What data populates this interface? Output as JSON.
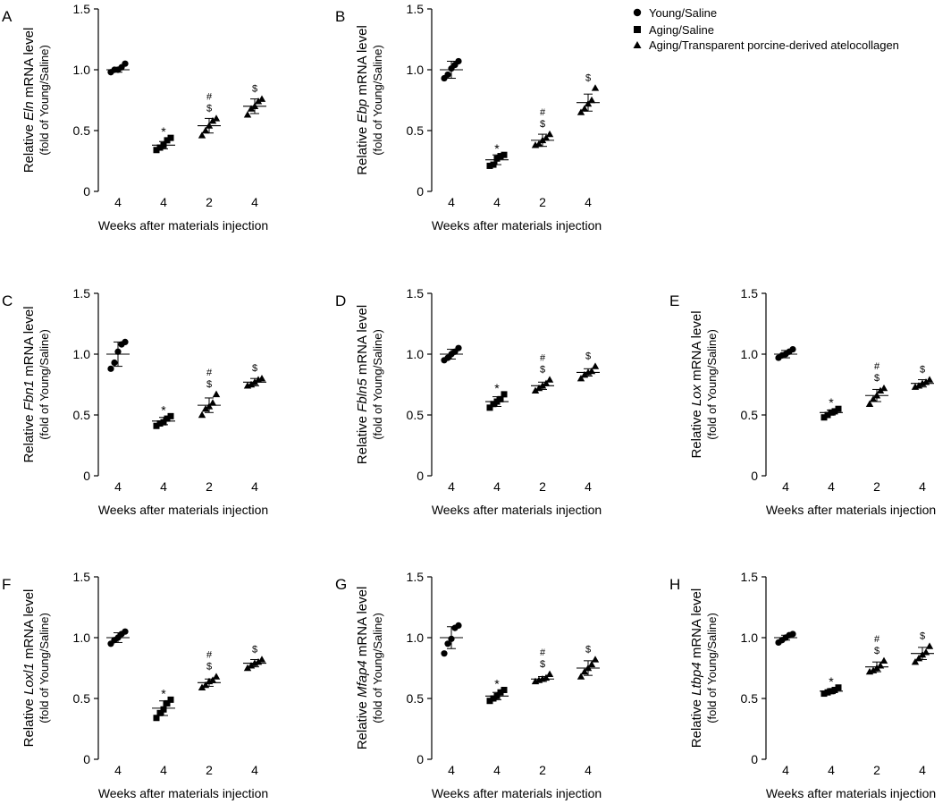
{
  "legend": {
    "entries": [
      {
        "marker": "circle",
        "label": "Young/Saline"
      },
      {
        "marker": "square",
        "label": "Aging/Saline"
      },
      {
        "marker": "triangle",
        "label": "Aging/Transparent porcine-derived atelocollagen"
      }
    ]
  },
  "chart_data": [
    {
      "type": "scatter",
      "panel": "A",
      "gene": "Eln",
      "ylabel_pre": "Relative ",
      "ylabel_post": " mRNA level",
      "ylabel2": "(fold of Young/Saline)",
      "xlabel": "Weeks after materials injection",
      "categories": [
        "4",
        "4",
        "2",
        "4"
      ],
      "yticks": [
        "0",
        "0.5",
        "1.0",
        "1.5"
      ],
      "ylim": [
        0,
        1.5
      ],
      "groups": [
        {
          "series": "Young/Saline",
          "points": [
            0.98,
            1.0,
            1.0,
            1.02,
            1.05
          ],
          "mean": 1.0,
          "sd": 0.02,
          "marks": []
        },
        {
          "series": "Aging/Saline",
          "points": [
            0.34,
            0.36,
            0.38,
            0.42,
            0.44
          ],
          "mean": 0.38,
          "sd": 0.03,
          "marks": [
            "*"
          ]
        },
        {
          "series": "Aging/Transparent porcine-derived atelocollagen",
          "points": [
            0.46,
            0.5,
            0.54,
            0.58,
            0.6
          ],
          "mean": 0.54,
          "sd": 0.06,
          "marks": [
            "$",
            "#"
          ]
        },
        {
          "series": "Aging/Transparent porcine-derived atelocollagen",
          "points": [
            0.63,
            0.68,
            0.7,
            0.74,
            0.76
          ],
          "mean": 0.7,
          "sd": 0.06,
          "marks": [
            "$"
          ]
        }
      ]
    },
    {
      "type": "scatter",
      "panel": "B",
      "gene": "Ebp",
      "ylabel_pre": "Relative ",
      "ylabel_post": " mRNA level",
      "ylabel2": "(fold of Young/Saline)",
      "xlabel": "Weeks after materials injection",
      "categories": [
        "4",
        "4",
        "2",
        "4"
      ],
      "yticks": [
        "0",
        "0.5",
        "1.0",
        "1.5"
      ],
      "ylim": [
        0,
        1.5
      ],
      "groups": [
        {
          "series": "Young/Saline",
          "points": [
            0.93,
            0.96,
            1.01,
            1.04,
            1.07
          ],
          "mean": 1.0,
          "sd": 0.07,
          "marks": []
        },
        {
          "series": "Aging/Saline",
          "points": [
            0.21,
            0.22,
            0.27,
            0.29,
            0.3
          ],
          "mean": 0.26,
          "sd": 0.04,
          "marks": [
            "*"
          ]
        },
        {
          "series": "Aging/Transparent porcine-derived atelocollagen",
          "points": [
            0.38,
            0.39,
            0.42,
            0.44,
            0.47
          ],
          "mean": 0.42,
          "sd": 0.05,
          "marks": [
            "$",
            "#"
          ]
        },
        {
          "series": "Aging/Transparent porcine-derived atelocollagen",
          "points": [
            0.65,
            0.68,
            0.72,
            0.75,
            0.85
          ],
          "mean": 0.73,
          "sd": 0.07,
          "marks": [
            "$"
          ]
        }
      ]
    },
    {
      "type": "scatter",
      "panel": "C",
      "gene": "Fbn1",
      "ylabel_pre": "Relative ",
      "ylabel_post": " mRNA level",
      "ylabel2": "(fold of Young/Saline)",
      "xlabel": "Weeks after materials injection",
      "categories": [
        "4",
        "4",
        "2",
        "4"
      ],
      "yticks": [
        "0",
        "0.5",
        "1.0",
        "1.5"
      ],
      "ylim": [
        0,
        1.5
      ],
      "groups": [
        {
          "series": "Young/Saline",
          "points": [
            0.88,
            0.93,
            1.02,
            1.08,
            1.1
          ],
          "mean": 1.0,
          "sd": 0.1,
          "marks": []
        },
        {
          "series": "Aging/Saline",
          "points": [
            0.41,
            0.43,
            0.44,
            0.47,
            0.49
          ],
          "mean": 0.45,
          "sd": 0.03,
          "marks": [
            "*"
          ]
        },
        {
          "series": "Aging/Transparent porcine-derived atelocollagen",
          "points": [
            0.5,
            0.55,
            0.57,
            0.6,
            0.67
          ],
          "mean": 0.58,
          "sd": 0.06,
          "marks": [
            "$",
            "#"
          ]
        },
        {
          "series": "Aging/Transparent porcine-derived atelocollagen",
          "points": [
            0.74,
            0.75,
            0.77,
            0.79,
            0.8
          ],
          "mean": 0.77,
          "sd": 0.03,
          "marks": [
            "$"
          ]
        }
      ]
    },
    {
      "type": "scatter",
      "panel": "D",
      "gene": "Fbln5",
      "ylabel_pre": "Relative ",
      "ylabel_post": " mRNA level",
      "ylabel2": "(fold of Young/Saline)",
      "xlabel": "Weeks after materials injection",
      "categories": [
        "4",
        "4",
        "2",
        "4"
      ],
      "yticks": [
        "0",
        "0.5",
        "1.0",
        "1.5"
      ],
      "ylim": [
        0,
        1.5
      ],
      "groups": [
        {
          "series": "Young/Saline",
          "points": [
            0.95,
            0.97,
            1.0,
            1.02,
            1.05
          ],
          "mean": 1.0,
          "sd": 0.04,
          "marks": []
        },
        {
          "series": "Aging/Saline",
          "points": [
            0.56,
            0.59,
            0.61,
            0.63,
            0.67
          ],
          "mean": 0.61,
          "sd": 0.04,
          "marks": [
            "*"
          ]
        },
        {
          "series": "Aging/Transparent porcine-derived atelocollagen",
          "points": [
            0.7,
            0.72,
            0.74,
            0.76,
            0.79
          ],
          "mean": 0.74,
          "sd": 0.03,
          "marks": [
            "$",
            "#"
          ]
        },
        {
          "series": "Aging/Transparent porcine-derived atelocollagen",
          "points": [
            0.8,
            0.83,
            0.85,
            0.86,
            0.9
          ],
          "mean": 0.85,
          "sd": 0.03,
          "marks": [
            "$"
          ]
        }
      ]
    },
    {
      "type": "scatter",
      "panel": "E",
      "gene": "Lox",
      "ylabel_pre": "Relative ",
      "ylabel_post": " mRNA level",
      "ylabel2": "(fold of Young/Saline)",
      "xlabel": "Weeks after materials injection",
      "categories": [
        "4",
        "4",
        "2",
        "4"
      ],
      "yticks": [
        "0",
        "0.5",
        "1.0",
        "1.5"
      ],
      "ylim": [
        0,
        1.5
      ],
      "groups": [
        {
          "series": "Young/Saline",
          "points": [
            0.97,
            0.99,
            1.0,
            1.02,
            1.04
          ],
          "mean": 1.0,
          "sd": 0.03,
          "marks": []
        },
        {
          "series": "Aging/Saline",
          "points": [
            0.48,
            0.5,
            0.52,
            0.53,
            0.55
          ],
          "mean": 0.52,
          "sd": 0.02,
          "marks": [
            "*"
          ]
        },
        {
          "series": "Aging/Transparent porcine-derived atelocollagen",
          "points": [
            0.59,
            0.63,
            0.66,
            0.7,
            0.72
          ],
          "mean": 0.66,
          "sd": 0.05,
          "marks": [
            "$",
            "#"
          ]
        },
        {
          "series": "Aging/Transparent porcine-derived atelocollagen",
          "points": [
            0.73,
            0.74,
            0.76,
            0.77,
            0.79
          ],
          "mean": 0.76,
          "sd": 0.03,
          "marks": [
            "$"
          ]
        }
      ]
    },
    {
      "type": "scatter",
      "panel": "F",
      "gene": "Loxl1",
      "ylabel_pre": "Relative ",
      "ylabel_post": " mRNA level",
      "ylabel2": "(fold of Young/Saline)",
      "xlabel": "Weeks after materials injection",
      "categories": [
        "4",
        "4",
        "2",
        "4"
      ],
      "yticks": [
        "0",
        "0.5",
        "1.0",
        "1.5"
      ],
      "ylim": [
        0,
        1.5
      ],
      "groups": [
        {
          "series": "Young/Saline",
          "points": [
            0.95,
            0.98,
            1.0,
            1.03,
            1.05
          ],
          "mean": 1.0,
          "sd": 0.04,
          "marks": []
        },
        {
          "series": "Aging/Saline",
          "points": [
            0.34,
            0.38,
            0.41,
            0.46,
            0.49
          ],
          "mean": 0.42,
          "sd": 0.06,
          "marks": [
            "*"
          ]
        },
        {
          "series": "Aging/Transparent porcine-derived atelocollagen",
          "points": [
            0.59,
            0.61,
            0.64,
            0.65,
            0.68
          ],
          "mean": 0.63,
          "sd": 0.03,
          "marks": [
            "$",
            "#"
          ]
        },
        {
          "series": "Aging/Transparent porcine-derived atelocollagen",
          "points": [
            0.75,
            0.77,
            0.79,
            0.8,
            0.82
          ],
          "mean": 0.79,
          "sd": 0.03,
          "marks": [
            "$"
          ]
        }
      ]
    },
    {
      "type": "scatter",
      "panel": "G",
      "gene": "Mfap4",
      "ylabel_pre": "Relative ",
      "ylabel_post": " mRNA level",
      "ylabel2": "(fold of Young/Saline)",
      "xlabel": "Weeks after materials injection",
      "categories": [
        "4",
        "4",
        "2",
        "4"
      ],
      "yticks": [
        "0",
        "0.5",
        "1.0",
        "1.5"
      ],
      "ylim": [
        0,
        1.5
      ],
      "groups": [
        {
          "series": "Young/Saline",
          "points": [
            0.87,
            0.95,
            0.99,
            1.08,
            1.1
          ],
          "mean": 1.0,
          "sd": 0.09,
          "marks": []
        },
        {
          "series": "Aging/Saline",
          "points": [
            0.48,
            0.5,
            0.52,
            0.55,
            0.57
          ],
          "mean": 0.52,
          "sd": 0.03,
          "marks": [
            "*"
          ]
        },
        {
          "series": "Aging/Transparent porcine-derived atelocollagen",
          "points": [
            0.64,
            0.65,
            0.66,
            0.67,
            0.7
          ],
          "mean": 0.66,
          "sd": 0.02,
          "marks": [
            "$",
            "#"
          ]
        },
        {
          "series": "Aging/Transparent porcine-derived atelocollagen",
          "points": [
            0.68,
            0.72,
            0.75,
            0.78,
            0.82
          ],
          "mean": 0.75,
          "sd": 0.06,
          "marks": [
            "$"
          ]
        }
      ]
    },
    {
      "type": "scatter",
      "panel": "H",
      "gene": "Ltbp4",
      "ylabel_pre": "Relative ",
      "ylabel_post": " mRNA level",
      "ylabel2": "(fold of Young/Saline)",
      "xlabel": "Weeks after materials injection",
      "categories": [
        "4",
        "4",
        "2",
        "4"
      ],
      "yticks": [
        "0",
        "0.5",
        "1.0",
        "1.5"
      ],
      "ylim": [
        0,
        1.5
      ],
      "groups": [
        {
          "series": "Young/Saline",
          "points": [
            0.96,
            0.98,
            1.0,
            1.02,
            1.03
          ],
          "mean": 1.0,
          "sd": 0.02,
          "marks": []
        },
        {
          "series": "Aging/Saline",
          "points": [
            0.54,
            0.55,
            0.56,
            0.57,
            0.59
          ],
          "mean": 0.56,
          "sd": 0.02,
          "marks": [
            "*"
          ]
        },
        {
          "series": "Aging/Transparent porcine-derived atelocollagen",
          "points": [
            0.72,
            0.73,
            0.75,
            0.77,
            0.81
          ],
          "mean": 0.76,
          "sd": 0.04,
          "marks": [
            "$",
            "#"
          ]
        },
        {
          "series": "Aging/Transparent porcine-derived atelocollagen",
          "points": [
            0.8,
            0.83,
            0.86,
            0.88,
            0.93
          ],
          "mean": 0.87,
          "sd": 0.05,
          "marks": [
            "$"
          ]
        }
      ]
    }
  ]
}
